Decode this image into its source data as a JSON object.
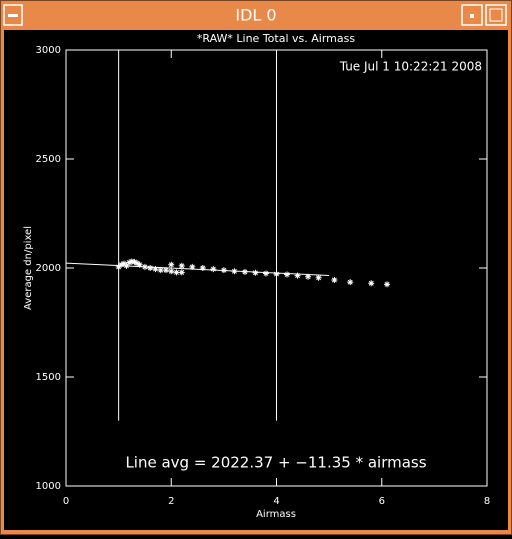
{
  "window": {
    "title": "IDL 0"
  },
  "chart_data": {
    "type": "scatter",
    "title": "*RAW* Line Total vs. Airmass",
    "timestamp": "Tue Jul  1 10:22:21 2008",
    "annotation": "Line avg = 2022.37 + −11.35 * airmass",
    "xlabel": "Airmass",
    "ylabel": "Average dn/pixel",
    "xlim": [
      0,
      8
    ],
    "ylim": [
      1000,
      3000
    ],
    "xticks": [
      0,
      2,
      4,
      6,
      8
    ],
    "yticks": [
      1000,
      1500,
      2000,
      2500,
      3000
    ],
    "color": "#ffffff",
    "x": [
      1.0,
      1.05,
      1.1,
      1.15,
      1.2,
      1.25,
      1.3,
      1.35,
      1.4,
      1.5,
      1.6,
      1.7,
      1.8,
      1.9,
      2.0,
      2.1,
      2.2,
      2.0,
      2.2,
      2.4,
      2.6,
      2.8,
      3.0,
      3.2,
      3.4,
      3.6,
      3.8,
      4.0,
      4.2,
      4.4,
      4.6,
      4.8,
      5.1,
      5.4,
      5.8,
      6.1
    ],
    "values": [
      2005,
      2015,
      2020,
      2010,
      2025,
      2030,
      2028,
      2022,
      2015,
      2005,
      2000,
      1995,
      1990,
      1990,
      1985,
      1980,
      1980,
      2015,
      2010,
      2005,
      2000,
      1995,
      1990,
      1985,
      1982,
      1978,
      1975,
      1972,
      1970,
      1965,
      1960,
      1955,
      1945,
      1935,
      1930,
      1925
    ],
    "fit": {
      "intercept": 2022.37,
      "slope": -11.35,
      "xrange": [
        0,
        5
      ]
    },
    "vlines": [
      {
        "x": 1,
        "y": [
          1300,
          3000
        ]
      },
      {
        "x": 4,
        "y": [
          1300,
          3000
        ]
      }
    ]
  }
}
